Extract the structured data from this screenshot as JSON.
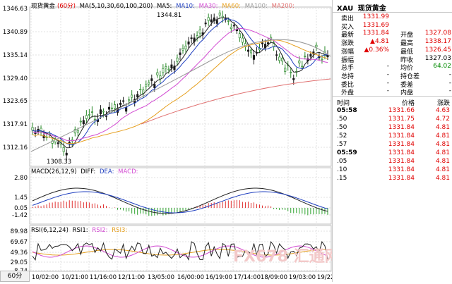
{
  "header": {
    "title": "现货黄金",
    "period": "(60分)",
    "ma_label": "MA(5,10,30,60,100,200)",
    "ma_items": [
      {
        "label": "MA5:",
        "color": "#222222"
      },
      {
        "label": "MA10:",
        "color": "#1f3fbf"
      },
      {
        "label": "MA30:",
        "color": "#d24bd2"
      },
      {
        "label": "MA60:",
        "color": "#e6a020"
      },
      {
        "label": "MA100:",
        "color": "#999999"
      },
      {
        "label": "MA200:",
        "color": "#e07070"
      }
    ]
  },
  "price_axis": [
    "1346.63",
    "1340.89",
    "1335.14",
    "1329.40",
    "1323.65",
    "1317.91",
    "1312.16"
  ],
  "annotations": {
    "high": "1344.81",
    "low": "1308.33"
  },
  "macd": {
    "label": "MACD(26,12,9)",
    "items": [
      {
        "label": "DIFF:",
        "color": "#222222"
      },
      {
        "label": "DEA:",
        "color": "#1f3fbf"
      },
      {
        "label": "MACD:",
        "color": "#d24bd2"
      }
    ],
    "axis": [
      "2.80",
      "1.45",
      "0.05",
      "-1.42"
    ]
  },
  "rsi": {
    "label": "RSI(6,12,24)",
    "items": [
      {
        "label": "RSI1:",
        "color": "#222222"
      },
      {
        "label": "RSI2:",
        "color": "#d24bd2"
      },
      {
        "label": "RSI3:",
        "color": "#e6a020"
      }
    ],
    "axis": [
      "89.98",
      "69.67",
      "49.36",
      "29.05",
      "8.74"
    ]
  },
  "time_axis": [
    "10/02:00",
    "10/21:00",
    "11/16:00",
    "12/11:00",
    "13/05:00",
    "16/00:00",
    "16/19:00",
    "17/14:00",
    "18/09:00",
    "19/03:00",
    "19/22:00"
  ],
  "tab": "60分",
  "watermark": "FX678 汇通网",
  "side": {
    "symbol": "XAU",
    "name": "现货黄金",
    "quote": [
      {
        "l": "卖出",
        "v": "1331.99",
        "vc": "red",
        "l2": "",
        "v2": "",
        "v2c": ""
      },
      {
        "l": "买入",
        "v": "1331.69",
        "vc": "red",
        "l2": "",
        "v2": "",
        "v2c": ""
      },
      {
        "l": "最新",
        "v": "1331.84",
        "vc": "red",
        "l2": "开盘",
        "v2": "1327.08",
        "v2c": "red"
      },
      {
        "l": "涨跌",
        "v": "▲4.81",
        "vc": "red",
        "l2": "最高",
        "v2": "1338.17",
        "v2c": "red"
      },
      {
        "l": "涨幅",
        "v": "▲0.36%",
        "vc": "red",
        "l2": "最低",
        "v2": "1326.45",
        "v2c": "red"
      },
      {
        "l": "振幅",
        "v": "",
        "vc": "",
        "l2": "昨收",
        "v2": "1327.03",
        "v2c": ""
      },
      {
        "l": "总手",
        "v": "-",
        "vc": "",
        "l2": "均价",
        "v2": "64.02",
        "v2c": "grn"
      },
      {
        "l": "总持",
        "v": "-",
        "vc": "",
        "l2": "持仓差",
        "v2": "-",
        "v2c": ""
      },
      {
        "l": "委比",
        "v": "-",
        "vc": "",
        "l2": "委差",
        "v2": "-",
        "v2c": ""
      },
      {
        "l": "外盘",
        "v": "-",
        "vc": "",
        "l2": "内盘",
        "v2": "-",
        "v2c": ""
      }
    ],
    "ticks_header": {
      "time": "时间",
      "price": "价格",
      "change": "涨跌"
    },
    "ticks": [
      {
        "t": "05:58",
        "p": "1331.66",
        "c": "4.63"
      },
      {
        "t": ".50",
        "p": "1331.75",
        "c": "4.72"
      },
      {
        "t": ".50",
        "p": "1331.84",
        "c": "4.81"
      },
      {
        "t": ".52",
        "p": "1331.84",
        "c": "4.81"
      },
      {
        "t": ".57",
        "p": "1331.84",
        "c": "4.81"
      },
      {
        "t": "05:59",
        "p": "1331.84",
        "c": "4.81"
      },
      {
        "t": ".05",
        "p": "1331.84",
        "c": "4.81"
      },
      {
        "t": ".10",
        "p": "1331.84",
        "c": "4.81"
      },
      {
        "t": ".15",
        "p": "1331.84",
        "c": "4.81"
      }
    ]
  }
}
